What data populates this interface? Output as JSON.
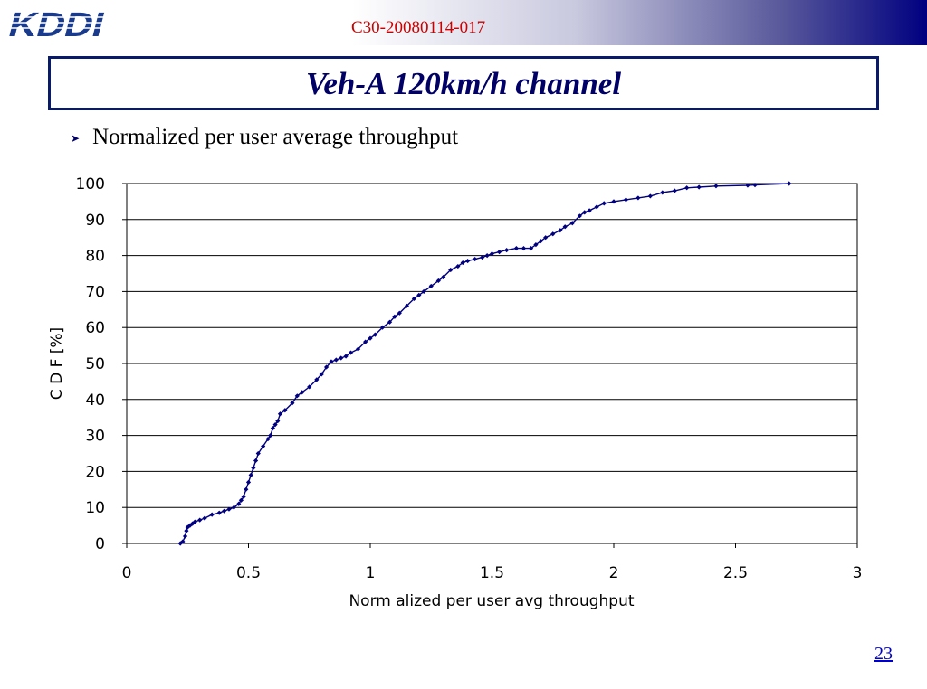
{
  "header": {
    "logo_text": "KDDI",
    "doc_id": "C30-20080114-017"
  },
  "slide": {
    "title": "Veh-A 120km/h channel",
    "bullet": "Normalized per user average throughput",
    "page_number": "23"
  },
  "colors": {
    "series": "#000080",
    "doc_id": "#cc0000",
    "title": "#000066",
    "header_gradient_end": "#000080"
  },
  "icons": {
    "bullet": "arrowhead-bullet-icon"
  },
  "chart_data": {
    "type": "line",
    "title": "",
    "xlabel": "Norm alized per user avg throughput",
    "ylabel": "C D F [%]",
    "xlim": [
      0,
      3
    ],
    "ylim": [
      0,
      100
    ],
    "xticks": [
      "0",
      "0.5",
      "1",
      "1.5",
      "2",
      "2.5",
      "3"
    ],
    "yticks": [
      "0",
      "10",
      "20",
      "30",
      "40",
      "50",
      "60",
      "70",
      "80",
      "90",
      "100"
    ],
    "grid": "horizontal",
    "legend": "none",
    "marker": "diamond",
    "series": [
      {
        "x": [
          0.22,
          0.23,
          0.24,
          0.245,
          0.25,
          0.26,
          0.27,
          0.28,
          0.3,
          0.32,
          0.35,
          0.38,
          0.4,
          0.42,
          0.44,
          0.46,
          0.47,
          0.48,
          0.49,
          0.5,
          0.51,
          0.52,
          0.53,
          0.54,
          0.56,
          0.58,
          0.59,
          0.6,
          0.61,
          0.62,
          0.63,
          0.65,
          0.68,
          0.7,
          0.72,
          0.75,
          0.78,
          0.8,
          0.82,
          0.84,
          0.86,
          0.88,
          0.9,
          0.92,
          0.95,
          0.98,
          1.0,
          1.02,
          1.05,
          1.08,
          1.1,
          1.12,
          1.15,
          1.18,
          1.2,
          1.22,
          1.25,
          1.28,
          1.3,
          1.33,
          1.36,
          1.38,
          1.4,
          1.43,
          1.46,
          1.48,
          1.5,
          1.53,
          1.56,
          1.6,
          1.63,
          1.66,
          1.68,
          1.7,
          1.72,
          1.75,
          1.78,
          1.8,
          1.83,
          1.86,
          1.88,
          1.9,
          1.93,
          1.96,
          2.0,
          2.05,
          2.1,
          2.15,
          2.2,
          2.25,
          2.3,
          2.35,
          2.42,
          2.55,
          2.58,
          2.72
        ],
        "y": [
          0,
          0.5,
          2,
          3.5,
          4.5,
          5,
          5.5,
          6,
          6.5,
          7,
          8,
          8.5,
          9,
          9.5,
          10,
          11,
          12,
          13,
          15,
          17,
          19,
          21,
          23,
          25,
          27,
          29,
          30,
          32,
          33,
          34,
          36,
          37,
          39,
          41,
          42,
          43.5,
          45.5,
          47,
          49,
          50.5,
          51,
          51.5,
          52,
          53,
          54,
          56,
          57,
          58,
          60,
          61.5,
          63,
          64,
          66,
          68,
          69,
          70,
          71.5,
          73,
          74,
          76,
          77,
          78,
          78.5,
          79,
          79.5,
          80,
          80.5,
          81,
          81.5,
          82,
          82,
          82,
          83,
          84,
          85,
          86,
          87,
          88,
          89,
          91,
          92,
          92.5,
          93.5,
          94.5,
          95,
          95.5,
          96,
          96.5,
          97.5,
          98,
          98.8,
          99,
          99.3,
          99.5,
          99.6,
          100
        ]
      }
    ]
  }
}
